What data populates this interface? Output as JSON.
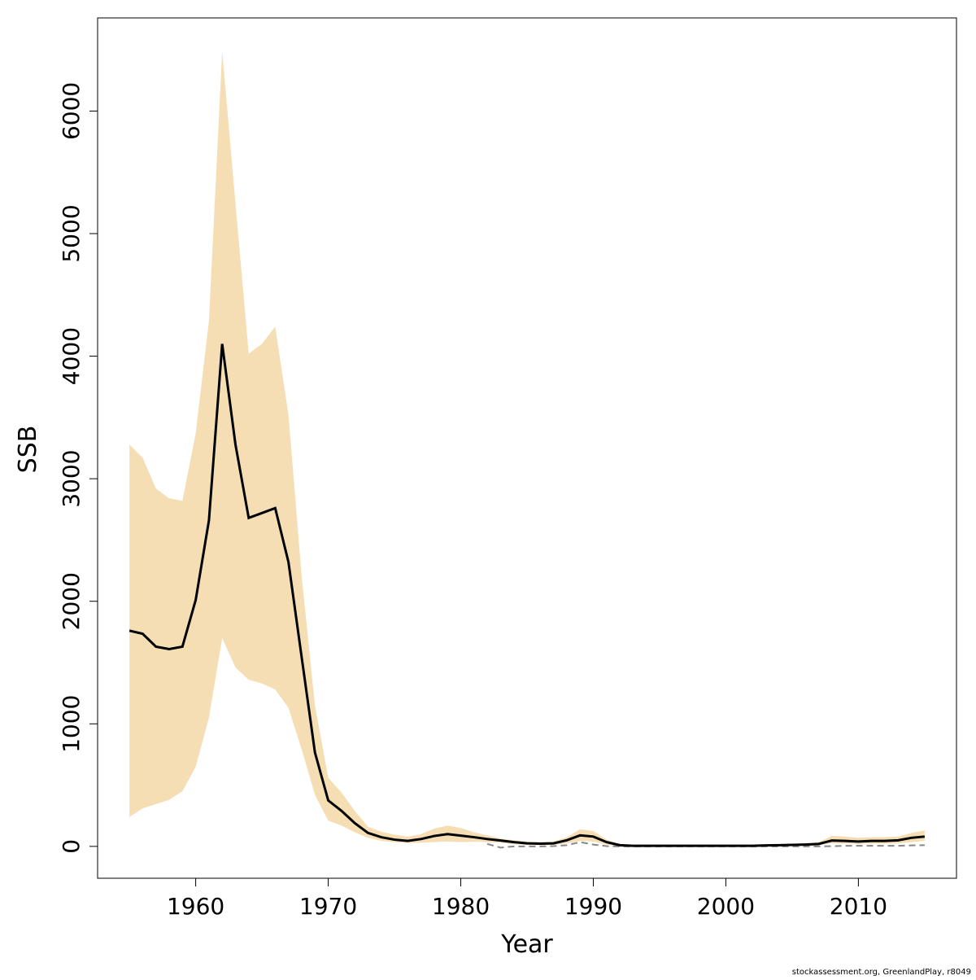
{
  "chart_data": {
    "type": "line",
    "xlabel": "Year",
    "ylabel": "SSB",
    "x": [
      1955,
      1956,
      1957,
      1958,
      1959,
      1960,
      1961,
      1962,
      1963,
      1964,
      1965,
      1966,
      1967,
      1968,
      1969,
      1970,
      1971,
      1972,
      1973,
      1974,
      1975,
      1976,
      1977,
      1978,
      1979,
      1980,
      1981,
      1982,
      1983,
      1984,
      1985,
      1986,
      1987,
      1988,
      1989,
      1990,
      1991,
      1992,
      1993,
      1994,
      1995,
      1996,
      1997,
      1998,
      1999,
      2000,
      2001,
      2002,
      2003,
      2004,
      2005,
      2006,
      2007,
      2008,
      2009,
      2010,
      2011,
      2012,
      2013,
      2014,
      2015
    ],
    "series": [
      {
        "color": "#000000",
        "dash": false,
        "values": [
          1760,
          1735,
          1630,
          1610,
          1630,
          2010,
          2660,
          4100,
          3280,
          2680,
          2720,
          2760,
          2320,
          1540,
          765,
          375,
          290,
          190,
          110,
          75,
          55,
          45,
          60,
          85,
          100,
          88,
          75,
          60,
          48,
          35,
          25,
          22,
          25,
          50,
          90,
          80,
          35,
          10,
          5,
          5,
          5,
          5,
          5,
          5,
          5,
          5,
          5,
          5,
          8,
          10,
          12,
          15,
          20,
          48,
          45,
          40,
          45,
          45,
          50,
          70,
          80
        ]
      },
      {
        "color": "#888888",
        "dash": true,
        "values": [
          null,
          null,
          null,
          null,
          null,
          null,
          null,
          null,
          null,
          null,
          null,
          null,
          null,
          null,
          null,
          null,
          null,
          null,
          null,
          null,
          null,
          null,
          null,
          null,
          null,
          null,
          null,
          20,
          -10,
          0,
          0,
          0,
          2,
          10,
          35,
          15,
          2,
          0,
          0,
          0,
          0,
          0,
          0,
          0,
          0,
          0,
          0,
          0,
          0,
          0,
          0,
          0,
          0,
          2,
          5,
          5,
          5,
          5,
          5,
          8,
          10
        ]
      }
    ],
    "band": {
      "color": "#f5deb3",
      "upper": [
        3280,
        3170,
        2920,
        2840,
        2820,
        3370,
        4290,
        6490,
        5250,
        4020,
        4100,
        4240,
        3520,
        2200,
        1150,
        560,
        440,
        290,
        160,
        120,
        95,
        80,
        100,
        145,
        170,
        150,
        115,
        90,
        65,
        50,
        40,
        35,
        40,
        75,
        140,
        125,
        55,
        18,
        10,
        10,
        10,
        10,
        10,
        10,
        10,
        10,
        10,
        10,
        14,
        16,
        20,
        25,
        35,
        85,
        80,
        70,
        75,
        75,
        80,
        110,
        130
      ],
      "lower": [
        240,
        310,
        345,
        380,
        450,
        650,
        1050,
        1700,
        1460,
        1360,
        1330,
        1280,
        1130,
        790,
        420,
        210,
        170,
        115,
        70,
        45,
        35,
        28,
        30,
        35,
        40,
        35,
        38,
        35,
        30,
        18,
        12,
        10,
        12,
        25,
        45,
        40,
        15,
        3,
        2,
        2,
        2,
        2,
        2,
        2,
        2,
        2,
        2,
        2,
        3,
        4,
        6,
        8,
        10,
        25,
        22,
        20,
        22,
        22,
        25,
        35,
        45
      ]
    },
    "xlim": [
      1952.6,
      2017.4
    ],
    "ylim": [
      -260,
      6760
    ],
    "xticks": [
      1960,
      1970,
      1980,
      1990,
      2000,
      2010
    ],
    "yticks": [
      0,
      1000,
      2000,
      3000,
      4000,
      5000,
      6000
    ],
    "footer": "stockassessment.org, GreenlandPlay, r8049"
  }
}
